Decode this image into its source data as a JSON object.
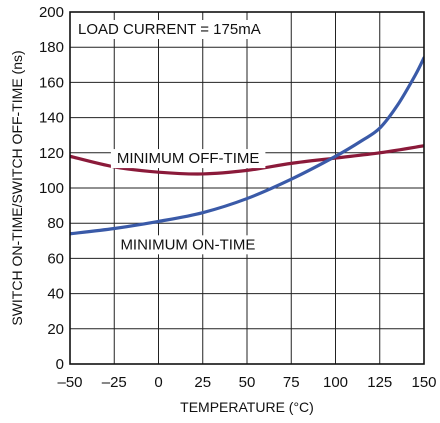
{
  "chart_data": {
    "type": "line",
    "xlabel": "TEMPERATURE (°C)",
    "ylabel": "SWITCH ON-TIME/SWITCH OFF-TIME (ns)",
    "xlim": [
      -50,
      150
    ],
    "ylim": [
      0,
      200
    ],
    "x_ticks": [
      "–50",
      "–25",
      "0",
      "25",
      "50",
      "75",
      "100",
      "125",
      "150"
    ],
    "y_ticks": [
      "0",
      "20",
      "40",
      "60",
      "80",
      "100",
      "120",
      "140",
      "160",
      "180",
      "200"
    ],
    "x_tick_values": [
      -50,
      -25,
      0,
      25,
      50,
      75,
      100,
      125,
      150
    ],
    "y_tick_values": [
      0,
      20,
      40,
      60,
      80,
      100,
      120,
      140,
      160,
      180,
      200
    ],
    "grid": true,
    "annotations": {
      "condition": "LOAD CURRENT = 175mA",
      "off_time_label": "MINIMUM OFF-TIME",
      "on_time_label": "MINIMUM ON-TIME"
    },
    "series": [
      {
        "name": "MINIMUM OFF-TIME",
        "color": "#8b1a3a",
        "x": [
          -50,
          -25,
          0,
          25,
          50,
          75,
          100,
          125,
          150
        ],
        "y": [
          118,
          112,
          109,
          108,
          110,
          114,
          117,
          120,
          124
        ]
      },
      {
        "name": "MINIMUM ON-TIME",
        "color": "#3a5aa8",
        "x": [
          -50,
          -25,
          0,
          25,
          50,
          75,
          100,
          115,
          125,
          135,
          145,
          150
        ],
        "y": [
          74,
          77,
          81,
          86,
          94,
          105,
          118,
          127,
          134,
          147,
          164,
          174
        ]
      }
    ]
  }
}
